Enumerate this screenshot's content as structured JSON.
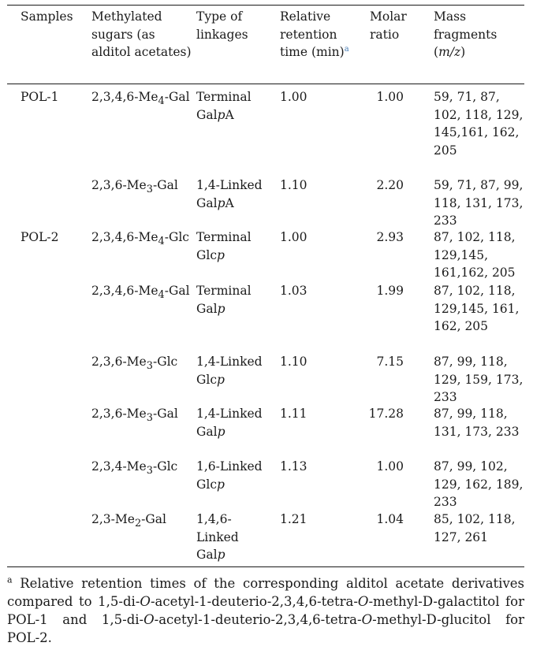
{
  "headers": {
    "samples": "Samples",
    "methylated": "Methylated sugars (as alditol acetates)",
    "linkage": "Type of linkages",
    "retention": "Relative retention time (min)",
    "retention_note": "a",
    "molar": "Molar ratio",
    "mass_prefix": "Mass fragments (",
    "mass_var": "m/z",
    "mass_suffix": ")"
  },
  "rows": [
    {
      "sample": "POL-1",
      "sugar_prefix": "2,3,4,6-Me",
      "sugar_sub": "4",
      "sugar_suffix": "-Gal",
      "linkage_text": "Terminal",
      "linkage_sugar": "Gal",
      "linkage_p": "p",
      "linkage_tail": "A",
      "rt": "1.00",
      "molar": "1.00",
      "mass": "59, 71, 87, 102, 118, 129, 145,161, 162, 205"
    },
    {
      "sample": "",
      "sugar_prefix": "2,3,6-Me",
      "sugar_sub": "3",
      "sugar_suffix": "-Gal",
      "linkage_text": "1,4-Linked",
      "linkage_sugar": "Gal",
      "linkage_p": "p",
      "linkage_tail": "A",
      "rt": "1.10",
      "molar": "2.20",
      "mass": "59, 71, 87, 99, 118, 131, 173, 233"
    },
    {
      "sample": "POL-2",
      "sugar_prefix": "2,3,4,6-Me",
      "sugar_sub": "4",
      "sugar_suffix": "-Glc",
      "linkage_text": "Terminal",
      "linkage_sugar": "Glc",
      "linkage_p": "p",
      "linkage_tail": "",
      "rt": "1.00",
      "molar": "2.93",
      "mass": "87, 102, 118, 129,145, 161,162, 205"
    },
    {
      "sample": "",
      "sugar_prefix": "2,3,4,6-Me",
      "sugar_sub": "4",
      "sugar_suffix": "-Gal",
      "linkage_text": "Terminal",
      "linkage_sugar": "Gal",
      "linkage_p": "p",
      "linkage_tail": "",
      "rt": "1.03",
      "molar": "1.99",
      "mass": "87, 102, 118, 129,145, 161, 162, 205"
    },
    {
      "sample": "",
      "sugar_prefix": "2,3,6-Me",
      "sugar_sub": "3",
      "sugar_suffix": "-Glc",
      "linkage_text": "1,4-Linked",
      "linkage_sugar": "Glc",
      "linkage_p": "p",
      "linkage_tail": "",
      "rt": "1.10",
      "molar": "7.15",
      "mass": "87, 99, 118, 129, 159, 173, 233"
    },
    {
      "sample": "",
      "sugar_prefix": "2,3,6-Me",
      "sugar_sub": "3",
      "sugar_suffix": "-Gal",
      "linkage_text": "1,4-Linked",
      "linkage_sugar": "Gal",
      "linkage_p": "p",
      "linkage_tail": "",
      "rt": "1.11",
      "molar": "17.28",
      "mass": "87, 99, 118, 131, 173, 233"
    },
    {
      "sample": "",
      "sugar_prefix": "2,3,4-Me",
      "sugar_sub": "3",
      "sugar_suffix": "-Glc",
      "linkage_text": "1,6-Linked",
      "linkage_sugar": "Glc",
      "linkage_p": "p",
      "linkage_tail": "",
      "rt": "1.13",
      "molar": "1.00",
      "mass": "87, 99, 102, 129, 162, 189, 233"
    },
    {
      "sample": "",
      "sugar_prefix": "2,3-Me",
      "sugar_sub": "2",
      "sugar_suffix": "-Gal",
      "linkage_text": "1,4,6-Linked",
      "linkage_sugar": "Gal",
      "linkage_p": "p",
      "linkage_tail": "",
      "rt": "1.21",
      "molar": "1.04",
      "mass": "85, 102, 118, 127, 261"
    }
  ],
  "footnote": {
    "mark": "a",
    "t1": " Relative retention times of the corresponding alditol acetate derivatives compared to 1,5-di-",
    "i1": "O",
    "t2": "-acetyl-1-deuterio-2,3,4,6-tetra-",
    "i2": "O",
    "t3": "-methyl-D-galactitol for POL-1 and 1,5-di-",
    "i3": "O",
    "t4": "-acetyl-1-deuterio-2,3,4,6-tetra-",
    "i4": "O",
    "t5": "-methyl-D-glucitol for POL-2."
  }
}
